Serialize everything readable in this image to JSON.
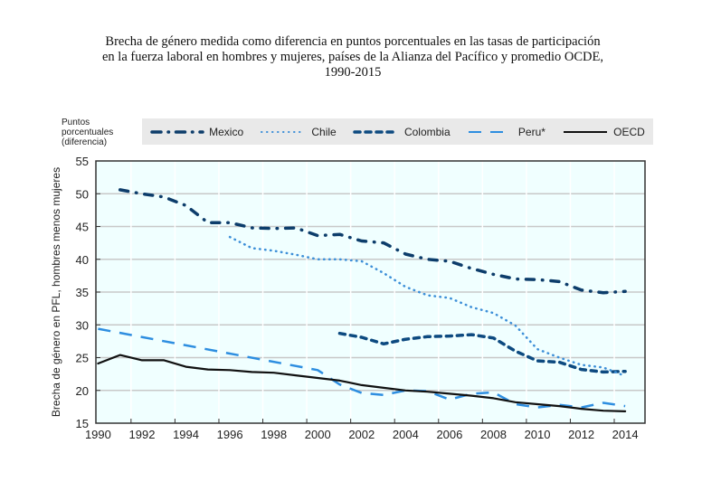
{
  "title_lines": [
    "Brecha de género medida como diferencia en puntos porcentuales en las tasas de participación",
    "en la fuerza laboral en hombres y mujeres, países de la Alianza del Pacífico y promedio OCDE,",
    "1990-2015"
  ],
  "unit_label_lines": [
    "Puntos",
    "porcentuales",
    "(diferencia)"
  ],
  "chart_data": {
    "type": "line",
    "title": "Brecha de género medida como diferencia en puntos porcentuales en las tasas de participación en la fuerza laboral en hombres y mujeres, países de la Alianza del Pacífico y promedio OCDE, 1990-2015",
    "xlabel": "",
    "ylabel": "Brecha de género en PFL, hombres menos mujeres",
    "unit_label": "Puntos porcentuales (diferencia)",
    "xlim": [
      1989.9,
      2014.9
    ],
    "ylim": [
      15,
      55
    ],
    "x_ticks": [
      1990,
      1992,
      1994,
      1996,
      1998,
      2000,
      2002,
      2004,
      2006,
      2008,
      2010,
      2012,
      2014
    ],
    "y_ticks": [
      15,
      20,
      25,
      30,
      35,
      40,
      45,
      50,
      55
    ],
    "grid": true,
    "legend_position": "top",
    "plot_background": "#f0ffff",
    "series": [
      {
        "name": "Mexico",
        "color": "#0d3d6b",
        "style": "dash-dot",
        "x": [
          1991,
          1992,
          1993,
          1994,
          1995,
          1996,
          1997,
          1998,
          1999,
          2000,
          2001,
          2002,
          2003,
          2004,
          2005,
          2006,
          2007,
          2008,
          2009,
          2010,
          2011,
          2012,
          2013,
          2014
        ],
        "values": [
          50.6,
          50.0,
          49.5,
          48.2,
          45.6,
          45.6,
          44.8,
          44.7,
          44.8,
          43.6,
          43.8,
          42.8,
          42.5,
          40.8,
          40.0,
          39.7,
          38.6,
          37.7,
          37.0,
          36.9,
          36.6,
          35.3,
          34.9,
          35.1
        ]
      },
      {
        "name": "Chile",
        "color": "#3d8fd8",
        "style": "dotted",
        "x": [
          1996,
          1997,
          1998,
          1999,
          2000,
          2001,
          2002,
          2003,
          2004,
          2005,
          2006,
          2007,
          2008,
          2009,
          2010,
          2011,
          2012,
          2013,
          2014
        ],
        "values": [
          43.4,
          41.7,
          41.3,
          40.7,
          40.0,
          40.0,
          39.7,
          37.9,
          35.8,
          34.5,
          34.1,
          32.7,
          31.8,
          29.9,
          26.3,
          25.0,
          23.9,
          23.5,
          22.2
        ]
      },
      {
        "name": "Colombia",
        "color": "#0d4a80",
        "style": "dashed",
        "x": [
          2001,
          2002,
          2003,
          2004,
          2005,
          2006,
          2007,
          2008,
          2009,
          2010,
          2011,
          2012,
          2013,
          2014
        ],
        "values": [
          28.7,
          28.1,
          27.1,
          27.8,
          28.2,
          28.3,
          28.5,
          28.0,
          26.0,
          24.5,
          24.3,
          23.2,
          22.8,
          22.9
        ]
      },
      {
        "name": "Peru*",
        "color": "#2e8ee0",
        "style": "long-dash",
        "x": [
          1990,
          2000,
          2001,
          2002,
          2003,
          2004,
          2005,
          2006,
          2007,
          2008,
          2009,
          2010,
          2011,
          2012,
          2013,
          2014
        ],
        "values": [
          29.4,
          23.1,
          20.9,
          19.6,
          19.3,
          20.0,
          19.9,
          18.6,
          19.5,
          19.7,
          17.9,
          17.4,
          17.8,
          17.4,
          18.1,
          17.6
        ]
      },
      {
        "name": "OECD",
        "color": "#111111",
        "style": "solid",
        "x": [
          1990,
          1991,
          1992,
          1993,
          1994,
          1995,
          1996,
          1997,
          1998,
          1999,
          2000,
          2001,
          2002,
          2003,
          2004,
          2005,
          2006,
          2007,
          2008,
          2009,
          2010,
          2011,
          2012,
          2013,
          2014
        ],
        "values": [
          24.1,
          25.4,
          24.6,
          24.6,
          23.6,
          23.2,
          23.1,
          22.8,
          22.7,
          22.3,
          21.9,
          21.5,
          20.8,
          20.4,
          20.0,
          19.8,
          19.5,
          19.2,
          18.8,
          18.2,
          17.9,
          17.6,
          17.2,
          16.9,
          16.8
        ]
      }
    ]
  }
}
